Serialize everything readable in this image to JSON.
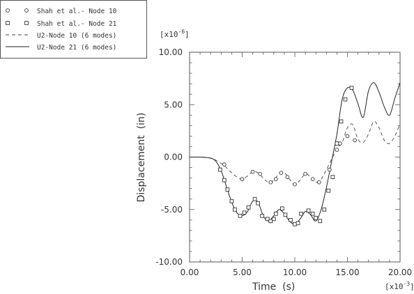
{
  "chart_data": {
    "type": "line",
    "xlabel": "Time  (s)",
    "ylabel": "Displacement  (in)",
    "x_multiplier": {
      "base": "[x10",
      "exp": "-3",
      "close": "]"
    },
    "y_multiplier": {
      "base": "[x10",
      "exp": "-6",
      "close": "]"
    },
    "xlim": [
      0,
      20
    ],
    "ylim": [
      -10,
      10
    ],
    "x_ticks": [
      0,
      5,
      10,
      15,
      20
    ],
    "x_tick_labels": [
      "0.00",
      "5.00",
      "10.00",
      "15.00",
      "20.00"
    ],
    "y_ticks": [
      -10,
      -5,
      0,
      5,
      10
    ],
    "y_tick_labels": [
      "-10.00",
      "-5.00",
      "0.00",
      "5.00",
      "10.00"
    ],
    "legend_position": "top-left",
    "series": [
      {
        "name": "Shah et al.- Node 10",
        "style": "circle-markers",
        "x": [
          3.3,
          5.0,
          6.0,
          6.7,
          7.7,
          8.2,
          8.7,
          9.3,
          10.0,
          11.0,
          11.7,
          12.3,
          13.3,
          14.0,
          14.3,
          15.0,
          15.7
        ],
        "y": [
          -0.7,
          -2.1,
          -1.4,
          -1.6,
          -2.4,
          -2.1,
          -1.5,
          -1.9,
          -2.6,
          -1.6,
          -2.1,
          -2.4,
          -1.2,
          0.7,
          1.3,
          2.0,
          1.6
        ]
      },
      {
        "name": "Shah et al.- Node 21",
        "style": "square-markers",
        "x": [
          2.9,
          3.3,
          3.6,
          4.0,
          4.3,
          4.8,
          5.2,
          5.6,
          6.2,
          6.5,
          6.9,
          7.4,
          7.7,
          8.0,
          8.2,
          8.8,
          9.1,
          9.6,
          10.0,
          10.3,
          10.6,
          11.3,
          11.7,
          12.0,
          12.4,
          12.8,
          13.2,
          13.6,
          14.0,
          14.4,
          14.8,
          15.4
        ],
        "y": [
          -1.2,
          -2.2,
          -3.1,
          -4.2,
          -5.0,
          -5.6,
          -5.3,
          -4.8,
          -4.0,
          -4.4,
          -5.6,
          -5.9,
          -6.1,
          -5.9,
          -5.4,
          -4.9,
          -5.5,
          -6.0,
          -6.4,
          -6.3,
          -5.4,
          -5.1,
          -5.4,
          -5.8,
          -6.1,
          -5.0,
          -3.2,
          -1.9,
          1.3,
          3.4,
          5.5,
          6.6
        ]
      },
      {
        "name": "U2-Node 10 (6 modes)",
        "style": "dashed",
        "x": [
          0.0,
          1.0,
          2.0,
          2.5,
          3.0,
          3.5,
          4.0,
          4.5,
          5.0,
          5.5,
          6.0,
          6.5,
          7.0,
          7.5,
          8.0,
          8.5,
          9.0,
          9.5,
          10.0,
          10.5,
          11.0,
          11.5,
          12.0,
          12.5,
          13.0,
          13.5,
          14.0,
          14.5,
          15.0,
          15.5,
          16.0,
          16.5,
          17.0,
          17.5,
          18.0,
          18.5,
          19.0,
          19.5,
          20.0
        ],
        "y": [
          0.0,
          0.0,
          -0.1,
          -0.3,
          -0.6,
          -1.0,
          -1.5,
          -1.9,
          -2.1,
          -1.8,
          -1.4,
          -1.5,
          -2.0,
          -2.4,
          -2.2,
          -1.6,
          -1.5,
          -2.1,
          -2.6,
          -2.2,
          -1.6,
          -1.9,
          -2.4,
          -2.1,
          -1.2,
          -0.2,
          0.8,
          1.4,
          2.8,
          3.1,
          1.7,
          1.4,
          2.2,
          3.4,
          2.8,
          1.6,
          1.3,
          2.0,
          3.2
        ]
      },
      {
        "name": "U2-Node 21 (6 modes)",
        "style": "solid",
        "x": [
          0.0,
          1.0,
          2.0,
          2.5,
          3.0,
          3.5,
          4.0,
          4.5,
          5.0,
          5.5,
          6.0,
          6.5,
          7.0,
          7.5,
          8.0,
          8.5,
          9.0,
          9.5,
          10.0,
          10.5,
          11.0,
          11.5,
          12.0,
          12.5,
          13.0,
          13.5,
          14.0,
          14.5,
          15.0,
          15.5,
          16.0,
          16.5,
          17.0,
          17.5,
          18.0,
          18.5,
          19.0,
          19.5,
          20.0
        ],
        "y": [
          0.0,
          0.0,
          -0.1,
          -0.4,
          -1.3,
          -2.8,
          -4.3,
          -5.3,
          -5.6,
          -5.2,
          -4.2,
          -4.3,
          -5.6,
          -6.1,
          -5.6,
          -5.0,
          -5.4,
          -6.1,
          -6.4,
          -5.9,
          -5.2,
          -5.5,
          -6.1,
          -5.0,
          -2.9,
          -0.4,
          2.2,
          5.5,
          6.6,
          6.4,
          5.1,
          3.8,
          6.3,
          7.1,
          6.2,
          4.8,
          4.0,
          5.6,
          7.1
        ]
      }
    ]
  }
}
